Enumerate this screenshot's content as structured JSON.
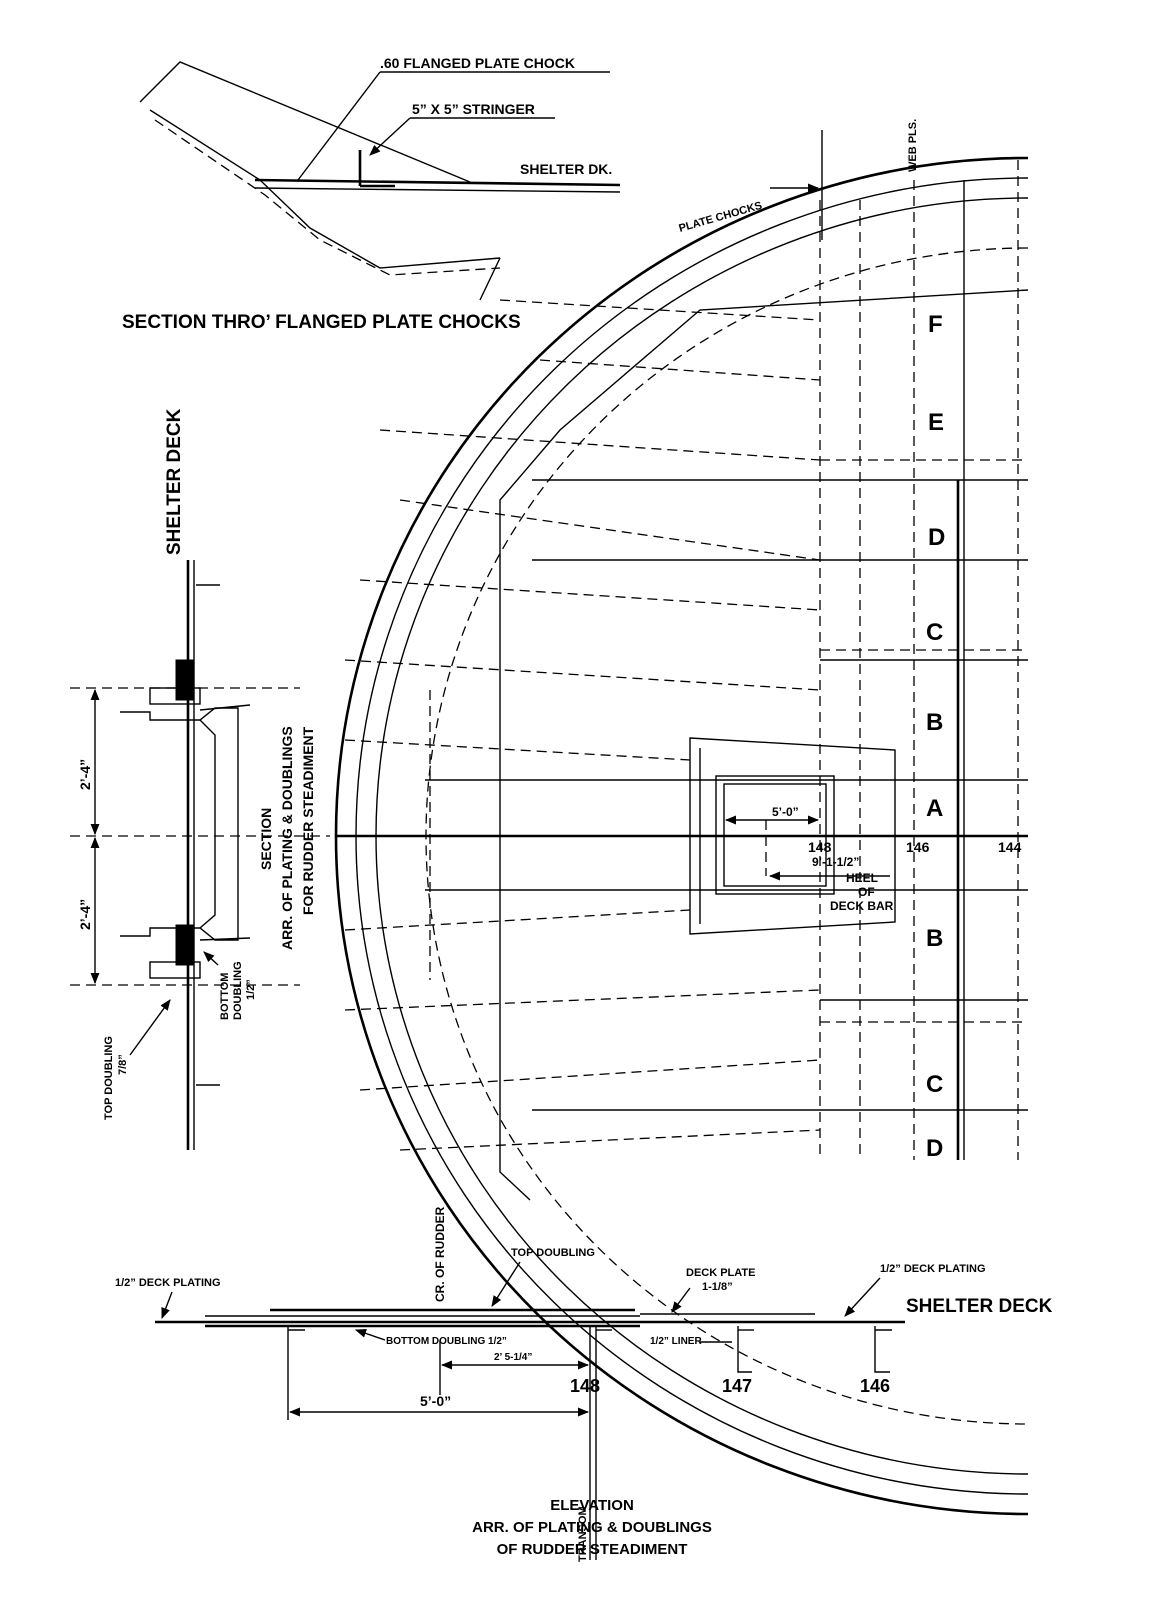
{
  "chock_section": {
    "label_chock": ".60  FLANGED PLATE CHOCK",
    "label_stringer": "5” X 5” STRINGER",
    "label_deck": "SHELTER DK.",
    "title": "SECTION THRO’ FLANGED PLATE CHOCKS"
  },
  "steadiment_section": {
    "deck_label": "SHELTER  DECK",
    "dim_upper": "2’-4”",
    "dim_lower": "2’-4”",
    "bottom_doubling": [
      "BOTTOM",
      "DOUBLING",
      "1/2”"
    ],
    "top_doubling": [
      "TOP DOUBLING",
      "7/8”"
    ],
    "title": [
      "SECTION",
      "ARR. OF PLATING & DOUBLINGS",
      "FOR RUDDER STEADIMENT"
    ]
  },
  "plan": {
    "web_plates": "WEB PLS.",
    "plate_chocks": "PLATE  CHOCKS",
    "plate_letters": [
      "F",
      "E",
      "D",
      "C",
      "B",
      "A",
      "B",
      "C",
      "D"
    ],
    "dim_opening": "5’-0”",
    "frame_148": "148",
    "frame_146": "146",
    "frame_144": "144",
    "dim_heel": "9’-1-1/2”",
    "heel_note": [
      "HEEL",
      "OF",
      "DECK BAR"
    ]
  },
  "elevation": {
    "cr_rudder": "CR. OF RUDDER",
    "top_doubling": "TOP  DOUBLING",
    "deck_plating_left": "1/2” DECK PLATING",
    "deck_plate": [
      "DECK PLATE",
      "1-1/8”"
    ],
    "deck_plating_right": "1/2” DECK PLATING",
    "shelter_deck": "SHELTER  DECK",
    "bottom_doubling": "BOTTOM DOUBLING 1/2”",
    "liner": "1/2” LINER",
    "dim_small": "2’ 5-1/4”",
    "dim_large": "5’-0”",
    "frames": [
      "148",
      "147",
      "146"
    ],
    "transom": "TRANSOM",
    "title": [
      "ELEVATION",
      "ARR. OF PLATING & DOUBLINGS",
      "OF RUDDER STEADIMENT"
    ]
  }
}
